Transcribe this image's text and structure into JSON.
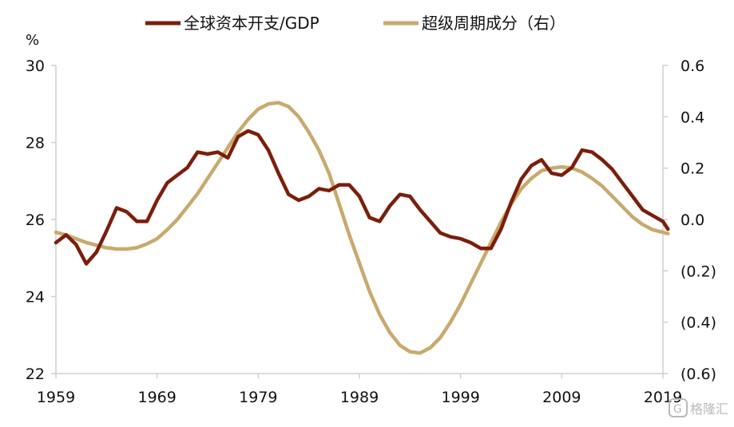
{
  "chart_data": {
    "type": "line",
    "left_unit": "%",
    "x_ticks": [
      "1959",
      "1969",
      "1979",
      "1989",
      "1999",
      "2009",
      "2019"
    ],
    "x_range": [
      1959,
      2019
    ],
    "y_left": {
      "lim": [
        22,
        30
      ],
      "ticks": [
        "22",
        "24",
        "26",
        "28",
        "30"
      ]
    },
    "y_right": {
      "lim": [
        -0.6,
        0.6
      ],
      "ticks": [
        {
          "value": 0.6,
          "label": "0.6",
          "color": "#111111"
        },
        {
          "value": 0.4,
          "label": "0.4",
          "color": "#111111"
        },
        {
          "value": 0.2,
          "label": "0.2",
          "color": "#111111"
        },
        {
          "value": 0.0,
          "label": "0.0",
          "color": "#111111"
        },
        {
          "value": -0.2,
          "label": "(0.2)",
          "color": "#ff0000"
        },
        {
          "value": -0.4,
          "label": "(0.4)",
          "color": "#ff0000"
        },
        {
          "value": -0.6,
          "label": "(0.6)",
          "color": "#ff0000"
        }
      ]
    },
    "grid": false,
    "legend_position": "top",
    "series": [
      {
        "name": "全球资本开支/GDP",
        "axis": "left",
        "color": "#7b1e0a",
        "x": [
          1959,
          1960,
          1961,
          1962,
          1963,
          1964,
          1965,
          1966,
          1967,
          1968,
          1969,
          1970,
          1971,
          1972,
          1973,
          1974,
          1975,
          1976,
          1977,
          1978,
          1979,
          1980,
          1981,
          1982,
          1983,
          1984,
          1985,
          1986,
          1987,
          1988,
          1989,
          1990,
          1991,
          1992,
          1993,
          1994,
          1995,
          1996,
          1997,
          1998,
          1999,
          2000,
          2001,
          2002,
          2003,
          2004,
          2005,
          2006,
          2007,
          2008,
          2009,
          2010,
          2011,
          2012,
          2013,
          2014,
          2015,
          2016,
          2017,
          2018,
          2019,
          2019.5
        ],
        "y": [
          25.4,
          25.6,
          25.35,
          24.85,
          25.15,
          25.7,
          26.3,
          26.2,
          25.95,
          25.95,
          26.5,
          26.95,
          27.15,
          27.35,
          27.75,
          27.7,
          27.75,
          27.6,
          28.15,
          28.3,
          28.2,
          27.8,
          27.2,
          26.65,
          26.5,
          26.6,
          26.8,
          26.75,
          26.9,
          26.9,
          26.6,
          26.05,
          25.95,
          26.35,
          26.65,
          26.6,
          26.25,
          25.95,
          25.65,
          25.55,
          25.5,
          25.4,
          25.25,
          25.25,
          25.75,
          26.45,
          27.05,
          27.4,
          27.55,
          27.2,
          27.15,
          27.35,
          27.8,
          27.75,
          27.55,
          27.3,
          26.95,
          26.6,
          26.25,
          26.1,
          25.95,
          25.75
        ]
      },
      {
        "name": "超级周期成分（右）",
        "axis": "right",
        "color": "#c8aa6e",
        "x": [
          1959,
          1960,
          1961,
          1962,
          1963,
          1964,
          1965,
          1966,
          1967,
          1968,
          1969,
          1970,
          1971,
          1972,
          1973,
          1974,
          1975,
          1976,
          1977,
          1978,
          1979,
          1980,
          1981,
          1982,
          1983,
          1984,
          1985,
          1986,
          1987,
          1988,
          1989,
          1990,
          1991,
          1992,
          1993,
          1994,
          1995,
          1996,
          1997,
          1998,
          1999,
          2000,
          2001,
          2002,
          2003,
          2004,
          2005,
          2006,
          2007,
          2008,
          2009,
          2010,
          2011,
          2012,
          2013,
          2014,
          2015,
          2016,
          2017,
          2018,
          2019,
          2019.5
        ],
        "y": [
          -0.05,
          -0.06,
          -0.075,
          -0.09,
          -0.1,
          -0.11,
          -0.115,
          -0.115,
          -0.11,
          -0.095,
          -0.075,
          -0.04,
          0.0,
          0.05,
          0.1,
          0.16,
          0.22,
          0.28,
          0.34,
          0.39,
          0.43,
          0.45,
          0.455,
          0.44,
          0.4,
          0.34,
          0.27,
          0.18,
          0.06,
          -0.06,
          -0.17,
          -0.28,
          -0.37,
          -0.44,
          -0.49,
          -0.515,
          -0.52,
          -0.5,
          -0.46,
          -0.4,
          -0.33,
          -0.25,
          -0.17,
          -0.09,
          -0.01,
          0.06,
          0.12,
          0.16,
          0.19,
          0.2,
          0.205,
          0.2,
          0.185,
          0.16,
          0.13,
          0.09,
          0.05,
          0.01,
          -0.02,
          -0.04,
          -0.05,
          -0.055
        ]
      }
    ]
  },
  "watermark": {
    "text": "格隆汇",
    "icon": "gelonghui-logo-icon"
  }
}
